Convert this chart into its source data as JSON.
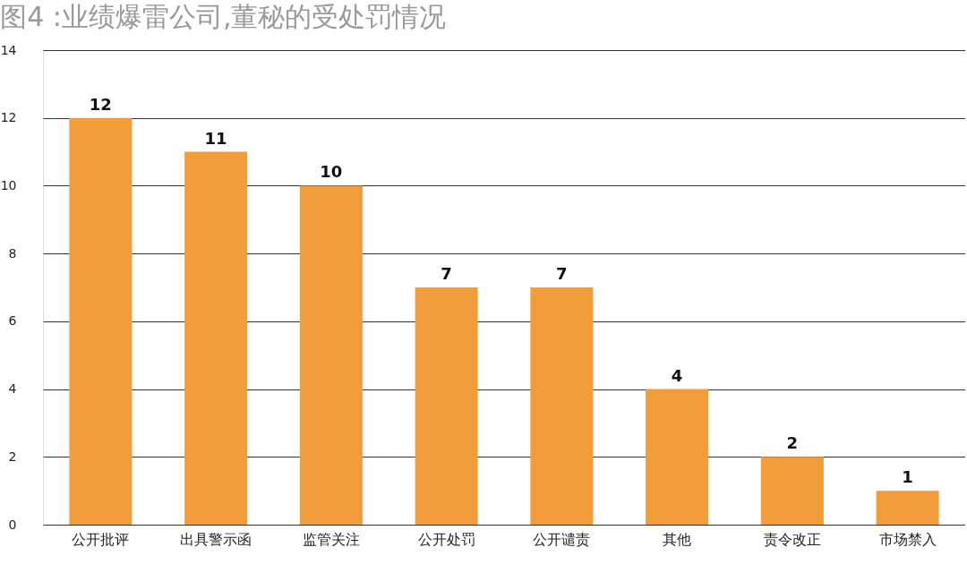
{
  "chart_data": {
    "type": "bar",
    "title": "图4 :业绩爆雷公司,董秘的受处罚情况",
    "categories": [
      "公开批评",
      "出具警示函",
      "监管关注",
      "公开处罚",
      "公开谴责",
      "其他",
      "责令改正",
      "市场禁入"
    ],
    "values": [
      12,
      11,
      10,
      7,
      7,
      4,
      2,
      1
    ],
    "color": "#f39c3a",
    "ylim": [
      0,
      14
    ],
    "yticks": [
      0,
      2,
      4,
      6,
      8,
      10,
      12,
      14
    ],
    "grid": "y",
    "data_labels": true
  }
}
